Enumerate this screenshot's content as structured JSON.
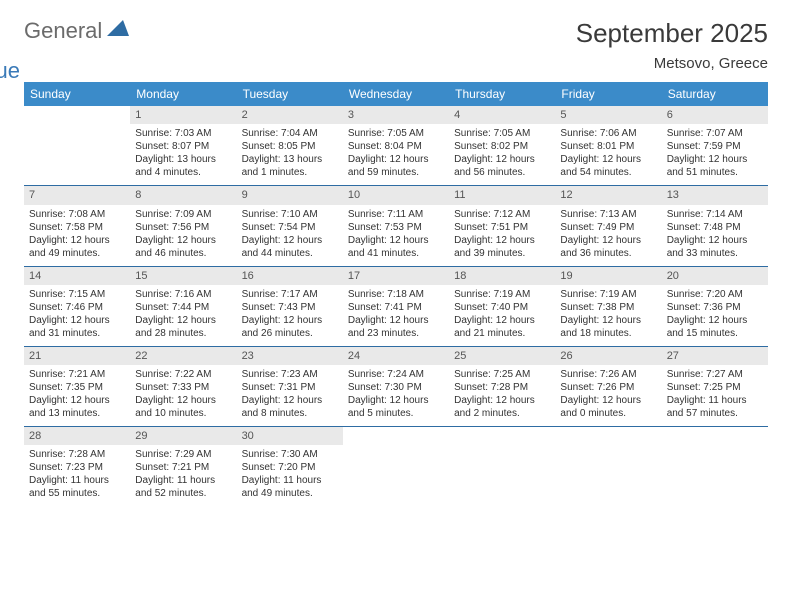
{
  "brand": {
    "part1": "General",
    "part2": "Blue"
  },
  "title": "September 2025",
  "location": "Metsovo, Greece",
  "colors": {
    "header_bg": "#3b8bc9",
    "header_text": "#ffffff",
    "daynum_bg": "#e9e9e9",
    "row_divider": "#2e6ca3",
    "brand_gray": "#6b6b6b",
    "brand_blue": "#3a7ab8"
  },
  "weekdays": [
    "Sunday",
    "Monday",
    "Tuesday",
    "Wednesday",
    "Thursday",
    "Friday",
    "Saturday"
  ],
  "layout": {
    "first_weekday_index": 1,
    "days_in_month": 30
  },
  "days": {
    "1": {
      "sunrise": "7:03 AM",
      "sunset": "8:07 PM",
      "daylight": "13 hours and 4 minutes."
    },
    "2": {
      "sunrise": "7:04 AM",
      "sunset": "8:05 PM",
      "daylight": "13 hours and 1 minutes."
    },
    "3": {
      "sunrise": "7:05 AM",
      "sunset": "8:04 PM",
      "daylight": "12 hours and 59 minutes."
    },
    "4": {
      "sunrise": "7:05 AM",
      "sunset": "8:02 PM",
      "daylight": "12 hours and 56 minutes."
    },
    "5": {
      "sunrise": "7:06 AM",
      "sunset": "8:01 PM",
      "daylight": "12 hours and 54 minutes."
    },
    "6": {
      "sunrise": "7:07 AM",
      "sunset": "7:59 PM",
      "daylight": "12 hours and 51 minutes."
    },
    "7": {
      "sunrise": "7:08 AM",
      "sunset": "7:58 PM",
      "daylight": "12 hours and 49 minutes."
    },
    "8": {
      "sunrise": "7:09 AM",
      "sunset": "7:56 PM",
      "daylight": "12 hours and 46 minutes."
    },
    "9": {
      "sunrise": "7:10 AM",
      "sunset": "7:54 PM",
      "daylight": "12 hours and 44 minutes."
    },
    "10": {
      "sunrise": "7:11 AM",
      "sunset": "7:53 PM",
      "daylight": "12 hours and 41 minutes."
    },
    "11": {
      "sunrise": "7:12 AM",
      "sunset": "7:51 PM",
      "daylight": "12 hours and 39 minutes."
    },
    "12": {
      "sunrise": "7:13 AM",
      "sunset": "7:49 PM",
      "daylight": "12 hours and 36 minutes."
    },
    "13": {
      "sunrise": "7:14 AM",
      "sunset": "7:48 PM",
      "daylight": "12 hours and 33 minutes."
    },
    "14": {
      "sunrise": "7:15 AM",
      "sunset": "7:46 PM",
      "daylight": "12 hours and 31 minutes."
    },
    "15": {
      "sunrise": "7:16 AM",
      "sunset": "7:44 PM",
      "daylight": "12 hours and 28 minutes."
    },
    "16": {
      "sunrise": "7:17 AM",
      "sunset": "7:43 PM",
      "daylight": "12 hours and 26 minutes."
    },
    "17": {
      "sunrise": "7:18 AM",
      "sunset": "7:41 PM",
      "daylight": "12 hours and 23 minutes."
    },
    "18": {
      "sunrise": "7:19 AM",
      "sunset": "7:40 PM",
      "daylight": "12 hours and 21 minutes."
    },
    "19": {
      "sunrise": "7:19 AM",
      "sunset": "7:38 PM",
      "daylight": "12 hours and 18 minutes."
    },
    "20": {
      "sunrise": "7:20 AM",
      "sunset": "7:36 PM",
      "daylight": "12 hours and 15 minutes."
    },
    "21": {
      "sunrise": "7:21 AM",
      "sunset": "7:35 PM",
      "daylight": "12 hours and 13 minutes."
    },
    "22": {
      "sunrise": "7:22 AM",
      "sunset": "7:33 PM",
      "daylight": "12 hours and 10 minutes."
    },
    "23": {
      "sunrise": "7:23 AM",
      "sunset": "7:31 PM",
      "daylight": "12 hours and 8 minutes."
    },
    "24": {
      "sunrise": "7:24 AM",
      "sunset": "7:30 PM",
      "daylight": "12 hours and 5 minutes."
    },
    "25": {
      "sunrise": "7:25 AM",
      "sunset": "7:28 PM",
      "daylight": "12 hours and 2 minutes."
    },
    "26": {
      "sunrise": "7:26 AM",
      "sunset": "7:26 PM",
      "daylight": "12 hours and 0 minutes."
    },
    "27": {
      "sunrise": "7:27 AM",
      "sunset": "7:25 PM",
      "daylight": "11 hours and 57 minutes."
    },
    "28": {
      "sunrise": "7:28 AM",
      "sunset": "7:23 PM",
      "daylight": "11 hours and 55 minutes."
    },
    "29": {
      "sunrise": "7:29 AM",
      "sunset": "7:21 PM",
      "daylight": "11 hours and 52 minutes."
    },
    "30": {
      "sunrise": "7:30 AM",
      "sunset": "7:20 PM",
      "daylight": "11 hours and 49 minutes."
    }
  },
  "labels": {
    "sunrise": "Sunrise:",
    "sunset": "Sunset:",
    "daylight": "Daylight:"
  }
}
